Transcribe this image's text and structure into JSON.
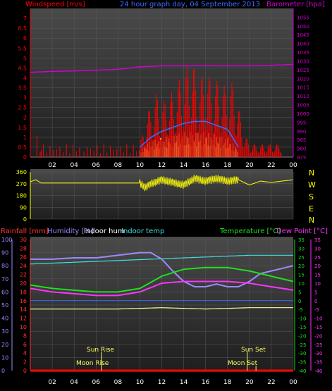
{
  "header": {
    "windspeed_label": "Windspeed [m/s]",
    "title": "24 hour graph day, 04 September 2013",
    "barometer_label": "Barometer [hpa]"
  },
  "compass": [
    "N",
    "W",
    "S",
    "E",
    "N"
  ],
  "lower_labels": {
    "rainfall": "Rainfall [mm]",
    "humidity": "Humidity [%]",
    "indoor_hum": "Indoor hum",
    "indoor_temp": "Indoor temp",
    "temperature": "Temperature [°C]",
    "dew_point": "Dew Point [°C]"
  },
  "sun_moon": {
    "sun_rise": "Sun Rise",
    "sun_set": "Sun Set",
    "moon_rise": "Moon Rise",
    "moon_set": "Moon Set"
  },
  "colors": {
    "windspeed": "#ff0000",
    "wind_avg": "#3b6cff",
    "wind_yellow": "#ffff66",
    "barometer": "#d200d2",
    "direction": "#ffff00",
    "humidity": "#9a8cff",
    "indoor_hum": "#ffffff",
    "indoor_temp": "#40e0e0",
    "temperature": "#20e020",
    "dew_point": "#ff33ff",
    "outdoor_low": "#ffff99",
    "rain": "#ff0000"
  },
  "chart_data": [
    {
      "type": "bar",
      "panel": "wind",
      "xlabel": "",
      "ylabel": "Windspeed [m/s]",
      "x_ticks": [
        "02",
        "04",
        "06",
        "08",
        "10",
        "12",
        "14",
        "16",
        "18",
        "20",
        "22",
        "00"
      ],
      "ylim": [
        0,
        7.5
      ],
      "y_ticks": [
        "0",
        "0.5",
        "1",
        "1.5",
        "2",
        "2.5",
        "3",
        "3.5",
        "4",
        "4.5",
        "5",
        "5.5",
        "6",
        "6.5",
        "7"
      ],
      "y2_label": "Barometer [hpa]",
      "y2_lim": [
        975,
        1060
      ],
      "y2_ticks": [
        "975",
        "980",
        "985",
        "990",
        "995",
        "1000",
        "1005",
        "1010",
        "1015",
        "1020",
        "1025",
        "1030",
        "1035",
        "1040",
        "1045",
        "1050",
        "1055"
      ],
      "barometer_series": {
        "hours": [
          0,
          2,
          4,
          6,
          8,
          10,
          12,
          14,
          16,
          18,
          20,
          22,
          24
        ],
        "values": [
          1023.5,
          1024.0,
          1024.3,
          1024.7,
          1025.2,
          1026.6,
          1027.2,
          1027.2,
          1027.3,
          1027.2,
          1027.2,
          1027.5,
          1028.0
        ]
      },
      "gust_series": {
        "hours": [
          0.5,
          1.0,
          1.5,
          2.0,
          4.0,
          6.0,
          8.0,
          10.0,
          10.5,
          11.0,
          11.5,
          12.0,
          12.5,
          13.0,
          13.5,
          14.0,
          14.5,
          15.0,
          15.5,
          16.0,
          16.5,
          17.0,
          17.5,
          18.0,
          18.5,
          19.0,
          19.5,
          20.0,
          20.5,
          21.0,
          21.5,
          22.0,
          22.5,
          23.0
        ],
        "values": [
          1.0,
          0.5,
          0.5,
          0.5,
          0.5,
          0.5,
          0.5,
          0.5,
          1.5,
          2.0,
          2.5,
          2.0,
          2.5,
          2.5,
          3.0,
          3.0,
          4.0,
          3.5,
          3.0,
          3.5,
          3.0,
          3.0,
          3.0,
          2.5,
          3.0,
          2.0,
          1.0,
          0.5,
          0.5,
          0.5,
          0.5,
          0.5,
          0.5,
          0.5
        ]
      },
      "avg_series": {
        "hours": [
          10.0,
          11.0,
          12.0,
          13.0,
          14.0,
          15.0,
          16.0,
          17.0,
          18.0,
          19.0
        ],
        "values": [
          0.5,
          1.0,
          1.3,
          1.5,
          1.7,
          1.8,
          1.8,
          1.6,
          1.4,
          0.5
        ]
      },
      "yellow_fill": {
        "hours": [
          10.0,
          11.0,
          12.0,
          13.0,
          14.0,
          15.0,
          16.0,
          17.0,
          18.0,
          19.0
        ],
        "values": [
          0.3,
          0.6,
          0.7,
          0.8,
          0.9,
          0.9,
          0.9,
          0.8,
          0.7,
          0.3
        ]
      }
    },
    {
      "type": "line",
      "panel": "direction",
      "ylim": [
        0,
        360
      ],
      "y_ticks": [
        "0",
        "90",
        "180",
        "270",
        "360"
      ],
      "x_ticks": [
        "02",
        "04",
        "06",
        "08",
        "10",
        "12",
        "14",
        "16",
        "18",
        "20",
        "22",
        "00"
      ],
      "series": [
        {
          "hours": [
            0,
            0.5,
            1.0,
            1.5,
            2,
            4,
            6,
            8,
            10,
            10.5,
            11,
            12,
            13,
            14,
            15,
            16,
            17,
            18,
            19,
            20,
            21,
            22,
            23,
            24
          ],
          "values": [
            285,
            300,
            275,
            275,
            275,
            275,
            275,
            275,
            275,
            240,
            270,
            300,
            280,
            260,
            310,
            290,
            310,
            290,
            300,
            260,
            290,
            280,
            290,
            300
          ]
        }
      ]
    },
    {
      "type": "line",
      "panel": "temperature_humidity",
      "x_ticks": [
        "02",
        "04",
        "06",
        "08",
        "10",
        "12",
        "14",
        "16",
        "18",
        "20",
        "22",
        "00"
      ],
      "y_left1_ticks": [
        "0",
        "10",
        "20",
        "30",
        "40",
        "50",
        "60",
        "70",
        "80",
        "90",
        "100"
      ],
      "y_left1_lim": [
        0,
        100
      ],
      "y_left2_ticks": [
        "0",
        "2",
        "4",
        "6",
        "8",
        "10",
        "12",
        "14",
        "16",
        "18",
        "20",
        "22",
        "24",
        "26",
        "28",
        "30"
      ],
      "y_left2_lim": [
        0,
        30
      ],
      "y_right_ticks": [
        "35",
        "30",
        "25",
        "20",
        "15",
        "10",
        "5",
        "0",
        "-5",
        "-10",
        "-15",
        "-20",
        "-25",
        "-30",
        "-35",
        "-40"
      ],
      "y_right_lim": [
        -40,
        35
      ],
      "series": [
        {
          "name": "Humidity [%]",
          "axis": "left1",
          "hours": [
            0,
            2,
            4,
            6,
            8,
            10,
            11,
            12,
            13,
            14,
            15,
            16,
            17,
            18,
            19,
            20,
            21,
            22,
            23,
            24
          ],
          "values": [
            85,
            85,
            86,
            86,
            88,
            90,
            90,
            85,
            76,
            68,
            64,
            64,
            66,
            64,
            64,
            68,
            74,
            76,
            78,
            80
          ]
        },
        {
          "name": "Indoor hum",
          "axis": "left1",
          "hours": [
            0,
            4,
            8,
            12,
            16,
            20,
            24
          ],
          "values": [
            47,
            47,
            47,
            48,
            47,
            48,
            48
          ]
        },
        {
          "name": "Indoor temp",
          "axis": "right",
          "hours": [
            0,
            4,
            8,
            12,
            16,
            20,
            24
          ],
          "values": [
            21,
            22,
            23,
            24,
            25,
            26,
            26
          ]
        },
        {
          "name": "Temperature [°C]",
          "axis": "right",
          "hours": [
            0,
            2,
            4,
            6,
            8,
            10,
            12,
            14,
            16,
            18,
            20,
            22,
            24
          ],
          "values": [
            9,
            7,
            6,
            5,
            5,
            7,
            14,
            18,
            19,
            19,
            17,
            14,
            11
          ]
        },
        {
          "name": "Dew Point [°C]",
          "axis": "right",
          "hours": [
            0,
            2,
            4,
            6,
            8,
            10,
            12,
            14,
            16,
            18,
            20,
            22,
            24
          ],
          "values": [
            7,
            5,
            4,
            3,
            3,
            5,
            10,
            11,
            11,
            11,
            10,
            8,
            6
          ]
        },
        {
          "name": "Rainfall [mm]",
          "axis": "left2",
          "hours": [
            0,
            24
          ],
          "values": [
            0,
            0
          ]
        }
      ],
      "sun_rise_hour": 6.5,
      "sun_set_hour": 19.8,
      "moon_rise_hour": 6.5,
      "moon_set_hour": 20.6
    }
  ]
}
